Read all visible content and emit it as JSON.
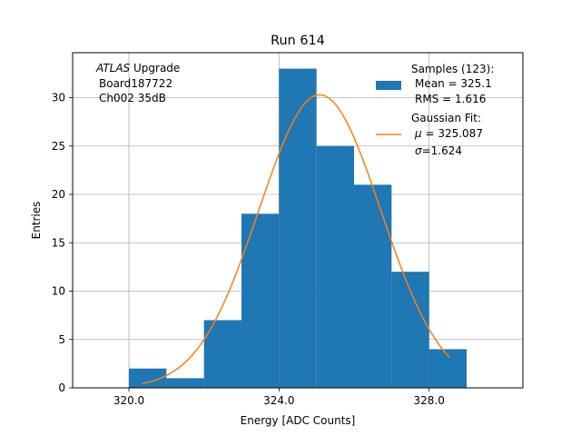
{
  "chart_data": {
    "type": "bar",
    "title": "Run 614",
    "xlabel": "Energy [ADC Counts]",
    "ylabel": "Entries",
    "xlim": [
      318.5,
      330.5
    ],
    "ylim": [
      0,
      34.65
    ],
    "grid": true,
    "xticks": [
      320.0,
      324.0,
      328.0
    ],
    "xtick_labels": [
      "320.0",
      "324.0",
      "328.0"
    ],
    "yticks": [
      0,
      5,
      10,
      15,
      20,
      25,
      30
    ],
    "ytick_labels": [
      "0",
      "5",
      "10",
      "15",
      "20",
      "25",
      "30"
    ],
    "histogram": {
      "name": "Samples (123):",
      "bin_edges": [
        320,
        321,
        322,
        323,
        324,
        325,
        326,
        327,
        328,
        329
      ],
      "counts": [
        2,
        1,
        7,
        18,
        33,
        25,
        21,
        12,
        4
      ],
      "color": "#1f77b4"
    },
    "fit": {
      "name": "Gaussian Fit:",
      "type": "gaussian",
      "mu": 325.087,
      "sigma": 1.624,
      "amplitude": 30.3,
      "x_range": [
        320.35,
        328.55
      ],
      "color": "#ff7f0e"
    },
    "annotation": {
      "italic": "ATLAS",
      "rest": " Upgrade",
      "line2": "Board187722",
      "line3": "Ch002 35dB"
    },
    "legend": {
      "placement": "top-right",
      "hist_lines": [
        "Samples (123):",
        "Mean = 325.1",
        "RMS = 1.616"
      ],
      "fit_title": "Gaussian Fit:",
      "fit_mu_symbol": "μ",
      "fit_mu_text": " = 325.087",
      "fit_sigma_symbol": "σ",
      "fit_sigma_text": "=1.624"
    }
  }
}
